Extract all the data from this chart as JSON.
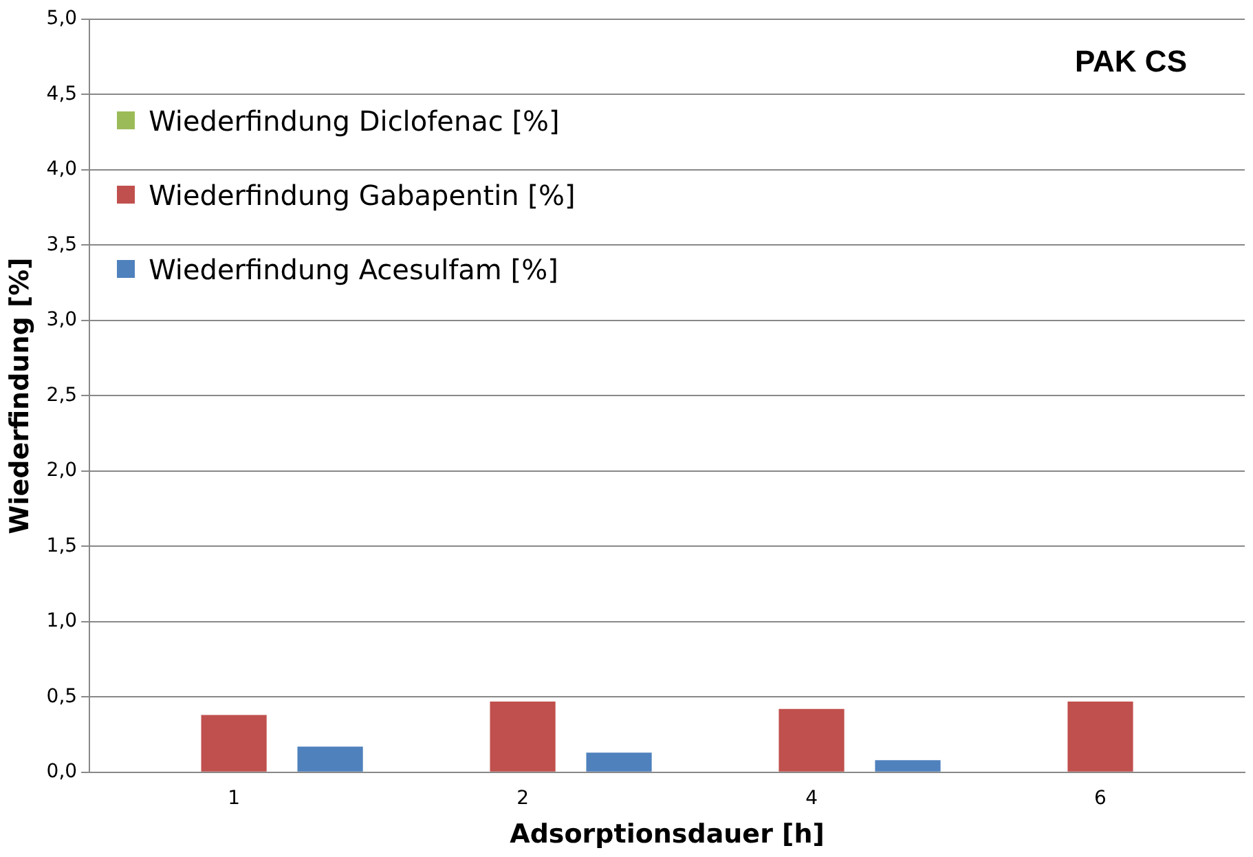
{
  "chart_data": {
    "type": "bar",
    "title": "PAK CS",
    "xlabel": "Adsorptionsdauer [h]",
    "ylabel": "Wiederfindung [%]",
    "categories": [
      "1",
      "2",
      "4",
      "6"
    ],
    "series": [
      {
        "name": "Wiederfindung Diclofenac [%]",
        "color": "#9bbb59",
        "values": [
          0,
          0,
          0,
          0
        ]
      },
      {
        "name": "Wiederfindung Gabapentin [%]",
        "color": "#c0504d",
        "values": [
          0.38,
          0.47,
          0.42,
          0.47
        ]
      },
      {
        "name": "Wiederfindung Acesulfam [%]",
        "color": "#4f81bd",
        "values": [
          0.17,
          0.13,
          0.08,
          0
        ]
      }
    ],
    "ylim": [
      0,
      5
    ],
    "yticks": [
      {
        "value": 0,
        "label": "0,0"
      },
      {
        "value": 0.5,
        "label": "0,5"
      },
      {
        "value": 1,
        "label": "1,0"
      },
      {
        "value": 1.5,
        "label": "1,5"
      },
      {
        "value": 2,
        "label": "2,0"
      },
      {
        "value": 2.5,
        "label": "2,5"
      },
      {
        "value": 3,
        "label": "3,0"
      },
      {
        "value": 3.5,
        "label": "3,5"
      },
      {
        "value": 4,
        "label": "4,0"
      },
      {
        "value": 4.5,
        "label": "4,5"
      },
      {
        "value": 5,
        "label": "5,0"
      }
    ],
    "grid": "y",
    "legend": "top left"
  }
}
